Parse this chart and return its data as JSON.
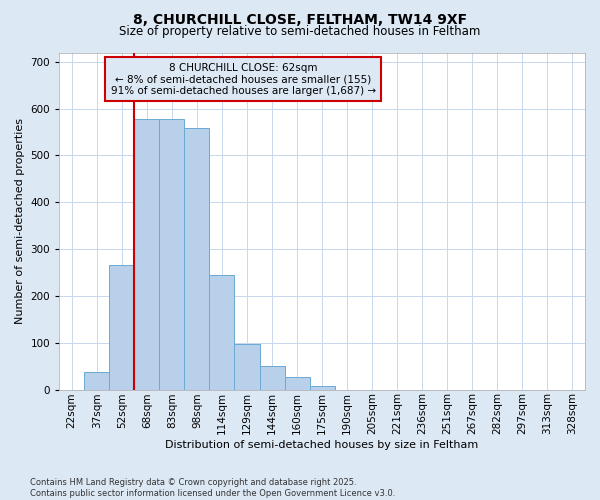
{
  "title_line1": "8, CHURCHILL CLOSE, FELTHAM, TW14 9XF",
  "title_line2": "Size of property relative to semi-detached houses in Feltham",
  "xlabel": "Distribution of semi-detached houses by size in Feltham",
  "ylabel": "Number of semi-detached properties",
  "categories": [
    "22sqm",
    "37sqm",
    "52sqm",
    "68sqm",
    "83sqm",
    "98sqm",
    "114sqm",
    "129sqm",
    "144sqm",
    "160sqm",
    "175sqm",
    "190sqm",
    "205sqm",
    "221sqm",
    "236sqm",
    "251sqm",
    "267sqm",
    "282sqm",
    "297sqm",
    "313sqm",
    "328sqm"
  ],
  "bar_heights": [
    0,
    38,
    265,
    578,
    578,
    558,
    245,
    97,
    50,
    27,
    7,
    0,
    0,
    0,
    0,
    0,
    0,
    0,
    0,
    0,
    0
  ],
  "pct_smaller": "8%",
  "pct_larger": "91%",
  "n_smaller": 155,
  "n_larger": 1687,
  "bar_color": "#b8d0ea",
  "bar_edge_color": "#6aaad4",
  "vline_color": "#cc0000",
  "vline_x": 3,
  "annotation_text_line1": "8 CHURCHILL CLOSE: 62sqm",
  "annotation_text_line2": "← 8% of semi-detached houses are smaller (155)",
  "annotation_text_line3": "91% of semi-detached houses are larger (1,687) →",
  "background_color": "#dde8f5",
  "plot_bg_color": "#ffffff",
  "grid_color": "#c8d8ed",
  "footer": "Contains HM Land Registry data © Crown copyright and database right 2025.\nContains public sector information licensed under the Open Government Licence v3.0.",
  "ylim": [
    0,
    720
  ],
  "yticks": [
    0,
    100,
    200,
    300,
    400,
    500,
    600,
    700
  ],
  "title1_fontsize": 10,
  "title2_fontsize": 8.5,
  "ylabel_fontsize": 8,
  "xlabel_fontsize": 8,
  "tick_fontsize": 7.5,
  "ann_fontsize": 7.5,
  "footer_fontsize": 6
}
